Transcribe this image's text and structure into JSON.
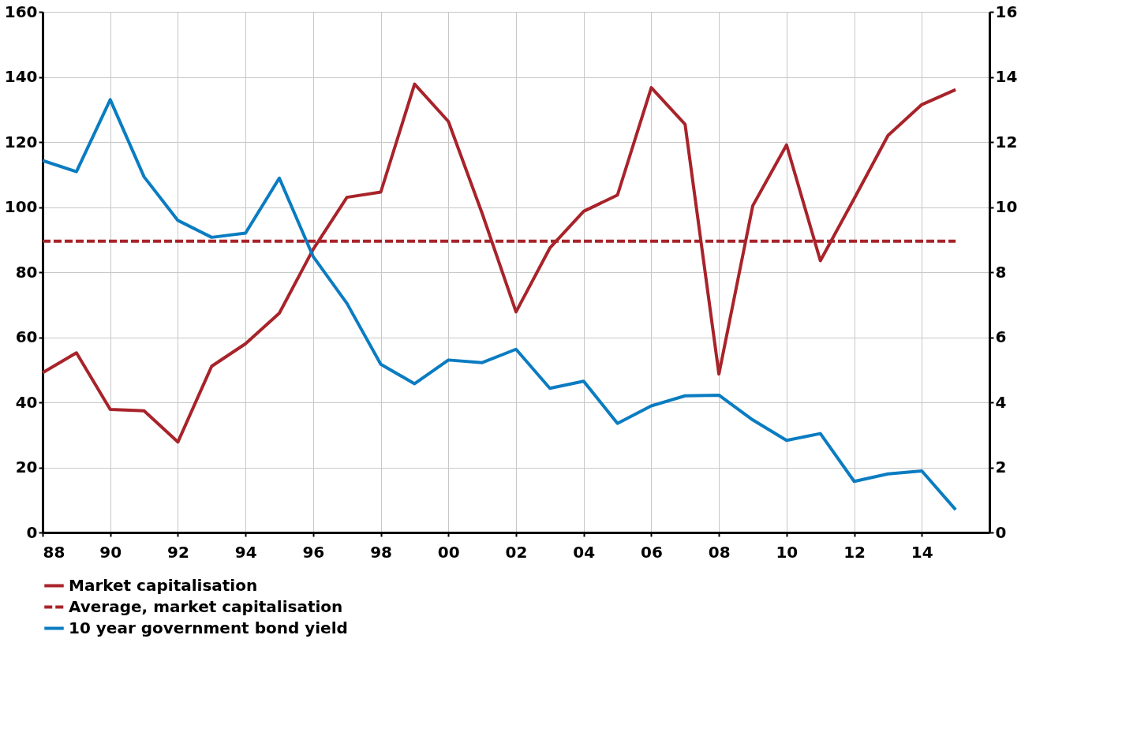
{
  "chart_data": {
    "type": "line",
    "x": [
      1988,
      1989,
      1990,
      1991,
      1992,
      1993,
      1994,
      1995,
      1996,
      1997,
      1998,
      1999,
      2000,
      2001,
      2002,
      2003,
      2004,
      2005,
      2006,
      2007,
      2008,
      2009,
      2010,
      2011,
      2012,
      2013,
      2014,
      2015
    ],
    "series": [
      {
        "name": "Market capitalisation",
        "color": "#a8232a",
        "line_style": "solid",
        "values": [
          49.1,
          55.2,
          37.8,
          37.4,
          27.8,
          51.1,
          58.0,
          67.4,
          87,
          103,
          104.6,
          137.8,
          126.3,
          98,
          67.8,
          87.4,
          98.7,
          103.7,
          136.7,
          125.4,
          48.7,
          100.4,
          119.1,
          83.5,
          102.6,
          122,
          131.5,
          136.1
        ]
      },
      {
        "name": "Average, market capitalisation",
        "color": "#a8232a",
        "line_style": "dashed",
        "values": [
          89.5,
          89.5,
          89.5,
          89.5,
          89.5,
          89.5,
          89.5,
          89.5,
          89.5,
          89.5,
          89.5,
          89.5,
          89.5,
          89.5,
          89.5,
          89.5,
          89.5,
          89.5,
          89.5,
          89.5,
          89.5,
          89.5,
          89.5,
          89.5,
          89.5,
          89.5,
          89.5,
          89.5
        ]
      },
      {
        "name": "10 year government bond yield",
        "color": "#0a7cc1",
        "line_style": "solid",
        "axis": "y2",
        "values": [
          11.43,
          11.09,
          13.3,
          10.93,
          9.59,
          9.07,
          9.2,
          10.89,
          8.48,
          7.04,
          5.17,
          4.57,
          5.3,
          5.22,
          5.63,
          4.43,
          4.65,
          3.35,
          3.89,
          4.2,
          4.22,
          3.46,
          2.83,
          3.04,
          1.57,
          1.8,
          1.89,
          0.7
        ]
      }
    ],
    "xlim": [
      1988,
      2016
    ],
    "xticks": [
      {
        "value": 1988,
        "label": "88"
      },
      {
        "value": 1990,
        "label": "90"
      },
      {
        "value": 1992,
        "label": "92"
      },
      {
        "value": 1994,
        "label": "94"
      },
      {
        "value": 1996,
        "label": "96"
      },
      {
        "value": 1998,
        "label": "98"
      },
      {
        "value": 2000,
        "label": "00"
      },
      {
        "value": 2002,
        "label": "02"
      },
      {
        "value": 2004,
        "label": "04"
      },
      {
        "value": 2006,
        "label": "06"
      },
      {
        "value": 2008,
        "label": "08"
      },
      {
        "value": 2010,
        "label": "10"
      },
      {
        "value": 2012,
        "label": "12"
      },
      {
        "value": 2014,
        "label": "14"
      }
    ],
    "ylim": [
      0,
      160
    ],
    "yticks": [
      0,
      20,
      40,
      60,
      80,
      100,
      120,
      140,
      160
    ],
    "y2lim": [
      0,
      16
    ],
    "y2ticks": [
      0,
      2,
      4,
      6,
      8,
      10,
      12,
      14,
      16
    ],
    "grid": true,
    "legend": "bottom"
  }
}
